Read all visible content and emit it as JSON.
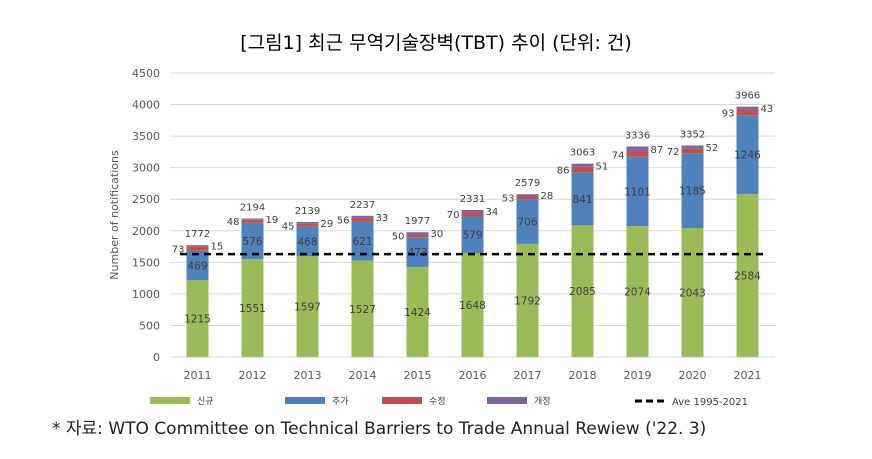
{
  "title": "[그림1] 최근 무역기술장벽(TBT) 추이 (단위: 건)",
  "footnote": "* 자료: WTO Committee on Technical Barriers to Trade Annual Rewiew ('22. 3)",
  "chart_data": {
    "type": "bar",
    "stacked": true,
    "ylabel": "Number of notifications",
    "ylim": [
      0,
      4500
    ],
    "yticks": [
      0,
      500,
      1000,
      1500,
      2000,
      2500,
      3000,
      3500,
      4000,
      4500
    ],
    "grid": true,
    "legend_position": "bottom",
    "categories": [
      "2011",
      "2012",
      "2013",
      "2014",
      "2015",
      "2016",
      "2017",
      "2018",
      "2019",
      "2020",
      "2021"
    ],
    "series": [
      {
        "name": "신규",
        "color": "#9bbb59",
        "values": [
          1215,
          1551,
          1597,
          1527,
          1424,
          1648,
          1792,
          2085,
          2074,
          2043,
          2584
        ]
      },
      {
        "name": "추가",
        "color": "#4f81bd",
        "values": [
          469,
          576,
          468,
          621,
          473,
          579,
          706,
          841,
          1101,
          1185,
          1246
        ]
      },
      {
        "name": "수정",
        "color": "#c0504d",
        "values": [
          73,
          48,
          45,
          56,
          50,
          70,
          53,
          86,
          74,
          72,
          93
        ]
      },
      {
        "name": "개정",
        "color": "#8064a2",
        "values": [
          15,
          19,
          29,
          33,
          30,
          34,
          28,
          51,
          87,
          52,
          43
        ]
      }
    ],
    "totals": [
      1772,
      2194,
      2139,
      2237,
      1977,
      2331,
      2579,
      3063,
      3336,
      3352,
      3966
    ],
    "reference_line": {
      "name": "Ave 1995-2021",
      "value": 1630,
      "style": "dashed",
      "color": "#000000"
    }
  }
}
